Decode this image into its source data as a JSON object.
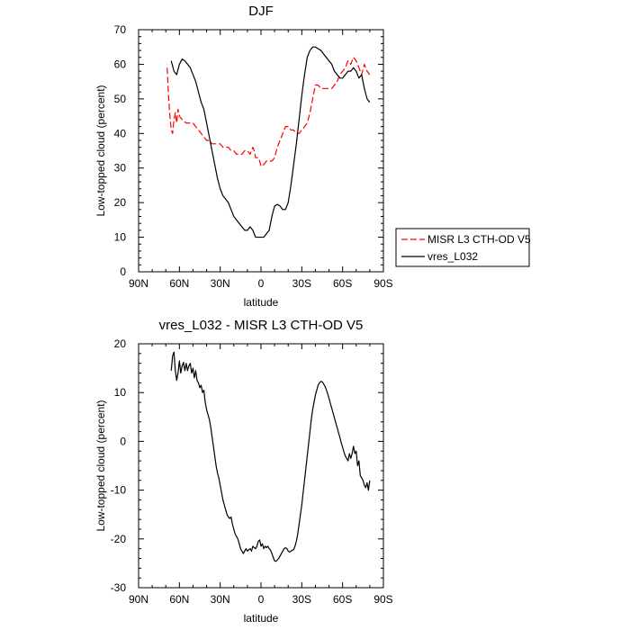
{
  "chart_data": [
    {
      "type": "line",
      "title": "DJF",
      "xlabel": "latitude",
      "ylabel": "Low-topped cloud (percent)",
      "xlim": [
        90,
        -90
      ],
      "ylim": [
        0,
        70
      ],
      "x_ticks": [
        90,
        60,
        30,
        0,
        -30,
        -60,
        -90
      ],
      "x_tick_labels": [
        "90N",
        "60N",
        "30N",
        "0",
        "30S",
        "60S",
        "90S"
      ],
      "y_ticks": [
        0,
        10,
        20,
        30,
        40,
        50,
        60,
        70
      ],
      "y_tick_labels": [
        "0",
        "10",
        "20",
        "30",
        "40",
        "50",
        "60",
        "70"
      ],
      "legend": "outside-right",
      "series": [
        {
          "name": "MISR L3 CTH-OD V5",
          "color": "#ff0000",
          "style": "dashed",
          "x": [
            69,
            68,
            67,
            66,
            65,
            64,
            63,
            62,
            61,
            60,
            58,
            55,
            52,
            50,
            48,
            46,
            44,
            42,
            40,
            38,
            36,
            34,
            32,
            30,
            28,
            26,
            24,
            22,
            20,
            18,
            16,
            14,
            12,
            10,
            8,
            6,
            5,
            4,
            3,
            2,
            1,
            0,
            -1,
            -2,
            -4,
            -6,
            -8,
            -10,
            -12,
            -14,
            -16,
            -18,
            -20,
            -22,
            -24,
            -26,
            -28,
            -30,
            -32,
            -34,
            -36,
            -38,
            -40,
            -42,
            -44,
            -46,
            -48,
            -50,
            -52,
            -54,
            -56,
            -58,
            -60,
            -62,
            -64,
            -66,
            -68,
            -70,
            -72,
            -74,
            -76,
            -78,
            -80
          ],
          "y": [
            59,
            51,
            45,
            41,
            40,
            44,
            46,
            43,
            47,
            45,
            44,
            43,
            43,
            43,
            42,
            41,
            40,
            39,
            38,
            38,
            37,
            37,
            37,
            37,
            36,
            36,
            36,
            35,
            35,
            34,
            34,
            34,
            35,
            35,
            34,
            36,
            35,
            33,
            33,
            33,
            32,
            30.5,
            31,
            31,
            32,
            32,
            32,
            33,
            36,
            38,
            40,
            42,
            42,
            41,
            41,
            40,
            40,
            41,
            42,
            43,
            46,
            50,
            54,
            54,
            53,
            53,
            53,
            53,
            53,
            54,
            55,
            57,
            58,
            59,
            61,
            60,
            62,
            61,
            59,
            57,
            60,
            58,
            57
          ]
        },
        {
          "name": "vres_L032",
          "color": "#000000",
          "style": "solid",
          "x": [
            66,
            64,
            62,
            60,
            58,
            56,
            54,
            52,
            50,
            48,
            46,
            44,
            42,
            40,
            38,
            36,
            34,
            32,
            30,
            28,
            26,
            24,
            22,
            20,
            18,
            16,
            14,
            12,
            10,
            8,
            6,
            4,
            2,
            0,
            -2,
            -4,
            -6,
            -8,
            -10,
            -12,
            -14,
            -16,
            -18,
            -20,
            -22,
            -24,
            -26,
            -28,
            -30,
            -32,
            -34,
            -36,
            -38,
            -40,
            -42,
            -44,
            -46,
            -48,
            -50,
            -52,
            -54,
            -56,
            -58,
            -60,
            -62,
            -64,
            -66,
            -68,
            -70,
            -72,
            -74,
            -76,
            -78,
            -80
          ],
          "y": [
            61,
            58,
            57,
            60,
            61.5,
            61,
            60,
            59,
            57,
            55,
            52,
            49,
            47,
            43,
            39,
            35,
            31,
            27,
            24,
            22,
            21,
            20,
            18,
            16,
            15,
            14,
            13,
            12,
            12,
            13,
            12,
            10,
            10,
            10,
            10,
            11,
            12,
            16,
            19,
            19.5,
            19,
            18,
            18,
            20,
            25,
            31,
            37,
            44,
            51,
            57,
            62,
            64,
            65,
            65,
            64.5,
            64,
            63,
            62,
            61,
            60,
            58,
            57,
            56,
            56,
            57,
            58,
            58,
            59,
            58,
            56,
            57,
            53,
            50,
            49
          ]
        }
      ]
    },
    {
      "type": "line",
      "title": "vres_L032 - MISR L3 CTH-OD V5",
      "xlabel": "latitude",
      "ylabel": "Low-topped cloud (percent)",
      "xlim": [
        90,
        -90
      ],
      "ylim": [
        -30,
        20
      ],
      "x_ticks": [
        90,
        60,
        30,
        0,
        -30,
        -60,
        -90
      ],
      "x_tick_labels": [
        "90N",
        "60N",
        "30N",
        "0",
        "30S",
        "60S",
        "90S"
      ],
      "y_ticks": [
        -30,
        -20,
        -10,
        0,
        10,
        20
      ],
      "y_tick_labels": [
        "-30",
        "-20",
        "-10",
        "0",
        "10",
        "20"
      ],
      "series": [
        {
          "color": "#000000",
          "style": "solid",
          "x": [
            66,
            65,
            64,
            63,
            62,
            61,
            60,
            59,
            58,
            57,
            56,
            55,
            54,
            53,
            52,
            51,
            50,
            49,
            48,
            47,
            46,
            45,
            44,
            43,
            42,
            41,
            40,
            39,
            38,
            37,
            36,
            35,
            34,
            33,
            32,
            31,
            30,
            29,
            28,
            27,
            26,
            25,
            24,
            23,
            22,
            21,
            20,
            19,
            18,
            17,
            16,
            15,
            14,
            13,
            12,
            11,
            10,
            9,
            8,
            7,
            6,
            5,
            4,
            3,
            2,
            1,
            0,
            -1,
            -2,
            -3,
            -4,
            -5,
            -6,
            -7,
            -8,
            -9,
            -10,
            -11,
            -12,
            -13,
            -14,
            -15,
            -16,
            -17,
            -18,
            -19,
            -20,
            -21,
            -22,
            -23,
            -24,
            -25,
            -26,
            -27,
            -28,
            -29,
            -30,
            -31,
            -32,
            -33,
            -34,
            -35,
            -36,
            -37,
            -38,
            -39,
            -40,
            -41,
            -42,
            -43,
            -44,
            -45,
            -46,
            -47,
            -48,
            -49,
            -50,
            -51,
            -52,
            -53,
            -54,
            -55,
            -56,
            -57,
            -58,
            -59,
            -60,
            -61,
            -62,
            -63,
            -64,
            -65,
            -66,
            -67,
            -68,
            -69,
            -70,
            -71,
            -72,
            -73,
            -74,
            -75,
            -76,
            -77,
            -78,
            -79,
            -80
          ],
          "y": [
            14.5,
            17.5,
            18.3,
            14.5,
            12.5,
            14.0,
            16.5,
            14.0,
            15.5,
            16.2,
            14.5,
            16.0,
            14.5,
            15.5,
            16.0,
            14.0,
            15.0,
            13.0,
            14.5,
            12.5,
            12.0,
            11.0,
            11.5,
            10.0,
            10.5,
            8.0,
            6.5,
            5.5,
            4.5,
            3.0,
            1.0,
            -1.0,
            -3.0,
            -5.0,
            -6.5,
            -7.5,
            -9.0,
            -10.5,
            -12.0,
            -13.0,
            -14.0,
            -15.0,
            -15.5,
            -15.8,
            -15.5,
            -17.0,
            -18.0,
            -19.0,
            -19.5,
            -20.0,
            -21.0,
            -22.0,
            -22.5,
            -23.0,
            -22.5,
            -22.0,
            -22.5,
            -22.2,
            -22.0,
            -22.5,
            -21.5,
            -21.8,
            -22.0,
            -21.5,
            -20.5,
            -20.2,
            -21.5,
            -21.0,
            -22.0,
            -21.5,
            -21.8,
            -21.5,
            -22.0,
            -22.3,
            -23.0,
            -23.8,
            -24.5,
            -24.6,
            -24.3,
            -24.0,
            -23.5,
            -23.0,
            -22.5,
            -22.0,
            -21.8,
            -22.0,
            -22.5,
            -22.7,
            -22.5,
            -22.3,
            -22.2,
            -21.5,
            -20.5,
            -19.0,
            -17.0,
            -15.0,
            -13.0,
            -10.5,
            -8.0,
            -5.5,
            -3.0,
            -0.5,
            2.0,
            4.5,
            6.5,
            8.0,
            9.5,
            10.5,
            11.5,
            12.0,
            12.3,
            12.2,
            11.8,
            11.3,
            10.6,
            9.8,
            8.8,
            7.8,
            6.8,
            5.8,
            4.8,
            3.8,
            2.8,
            1.8,
            0.8,
            -0.3,
            -1.2,
            -2.2,
            -3.0,
            -3.5,
            -4.0,
            -2.5,
            -3.5,
            -2.5,
            -1.0,
            -2.5,
            -2.0,
            -5.0,
            -4.0,
            -7.0,
            -7.5,
            -8.0,
            -9.0,
            -9.5,
            -8.5,
            -10.0,
            -8.0
          ]
        }
      ]
    }
  ]
}
